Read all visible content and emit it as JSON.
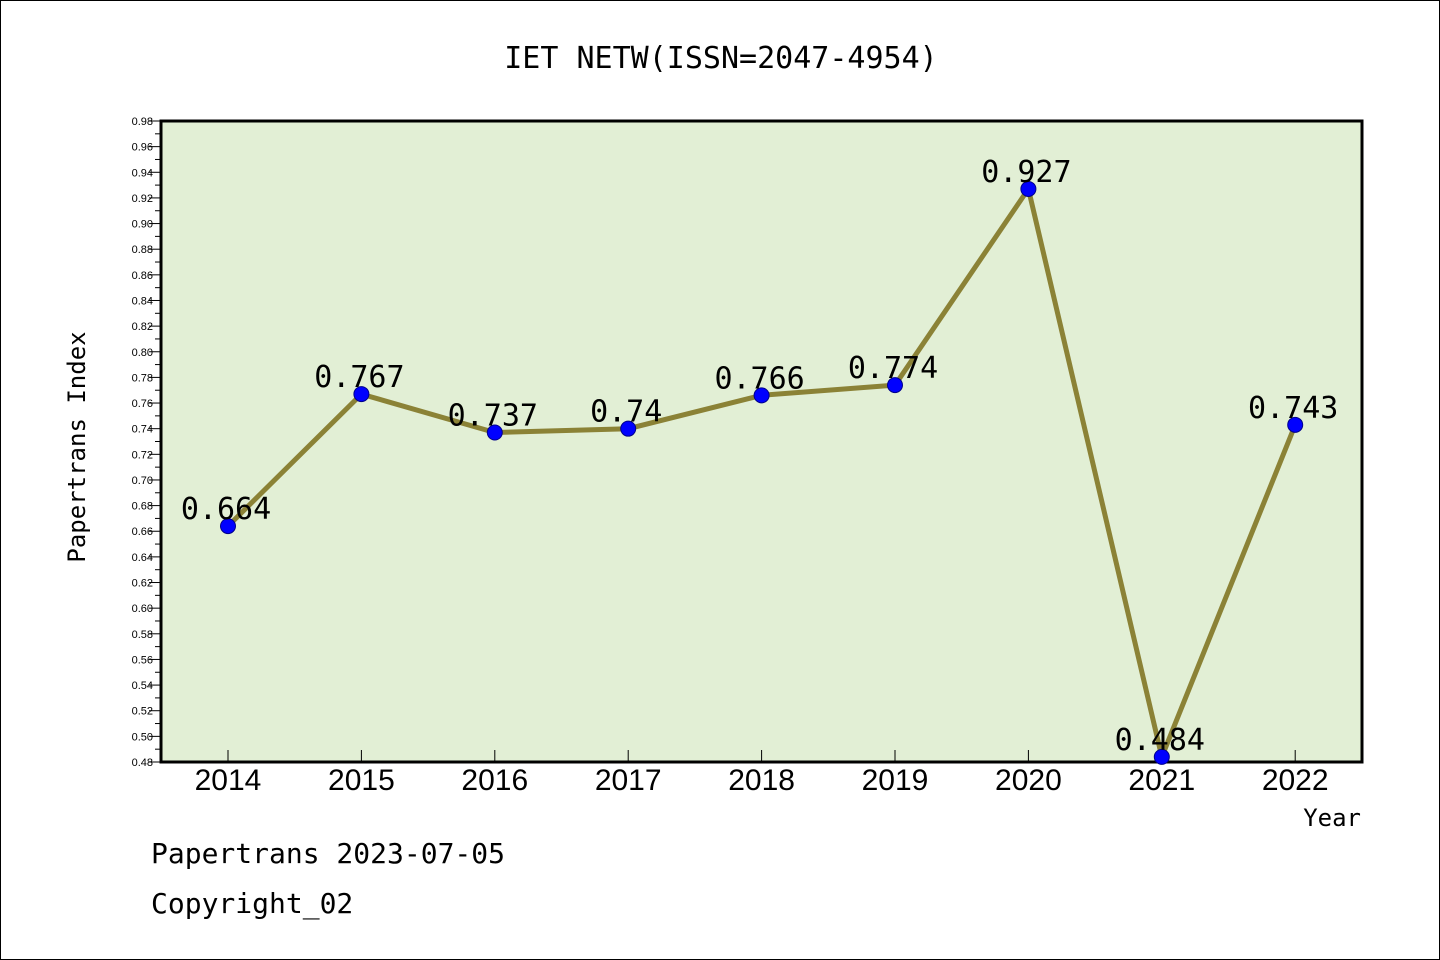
{
  "chart_data": {
    "type": "line",
    "title": "IET NETW(ISSN=2047-4954)",
    "xlabel": "Year",
    "ylabel": "Papertrans Index",
    "categories": [
      "2014",
      "2015",
      "2016",
      "2017",
      "2018",
      "2019",
      "2020",
      "2021",
      "2022"
    ],
    "values": [
      0.664,
      0.767,
      0.737,
      0.74,
      0.766,
      0.774,
      0.927,
      0.484,
      0.743
    ],
    "data_labels": [
      "0.664",
      "0.767",
      "0.737",
      "0.74",
      "0.766",
      "0.774",
      "0.927",
      "0.484",
      "0.743"
    ],
    "ylim": [
      0.48,
      0.98
    ],
    "yticks": [
      "0.48",
      "0.50",
      "0.52",
      "0.54",
      "0.56",
      "0.58",
      "0.60",
      "0.62",
      "0.64",
      "0.66",
      "0.68",
      "0.70",
      "0.72",
      "0.74",
      "0.76",
      "0.78",
      "0.80",
      "0.82",
      "0.84",
      "0.86",
      "0.88",
      "0.90",
      "0.92",
      "0.94",
      "0.96",
      "0.98"
    ],
    "grid": false,
    "colors": {
      "plot_background": "#e2efd5",
      "line": "#8b8236",
      "marker": "#0000ff"
    }
  },
  "footer": {
    "date_line": "Papertrans 2023-07-05",
    "copyright_line": "Copyright_02"
  }
}
